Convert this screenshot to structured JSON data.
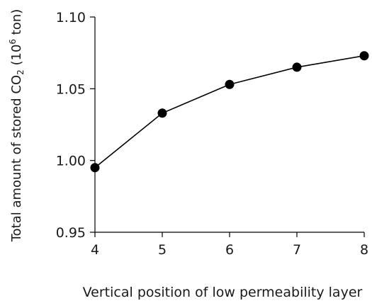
{
  "chart_data": {
    "type": "scatter",
    "title": "",
    "xlabel": "Vertical position of low permeability layer",
    "ylabel": {
      "prefix": "Total amount of stored CO",
      "subscript": "2",
      "unit_open": " (10",
      "unit_exp": "6",
      "unit_close": " ton)"
    },
    "xlim": [
      4,
      8
    ],
    "ylim": [
      0.95,
      1.1
    ],
    "x_ticks": [
      4,
      5,
      6,
      7,
      8
    ],
    "x_tick_labels": [
      "4",
      "5",
      "6",
      "7",
      "8"
    ],
    "y_ticks": [
      0.95,
      1.0,
      1.05,
      1.1
    ],
    "y_tick_labels": [
      "0.95",
      "1.00",
      "1.05",
      "1.10"
    ],
    "grid": false,
    "legend": "none",
    "series": [
      {
        "style": "line+markers",
        "color": "#000000",
        "points": [
          {
            "x": 4,
            "y": 0.995
          },
          {
            "x": 5,
            "y": 1.033
          },
          {
            "x": 6,
            "y": 1.053
          },
          {
            "x": 7,
            "y": 1.065
          },
          {
            "x": 8,
            "y": 1.073
          }
        ]
      }
    ]
  }
}
